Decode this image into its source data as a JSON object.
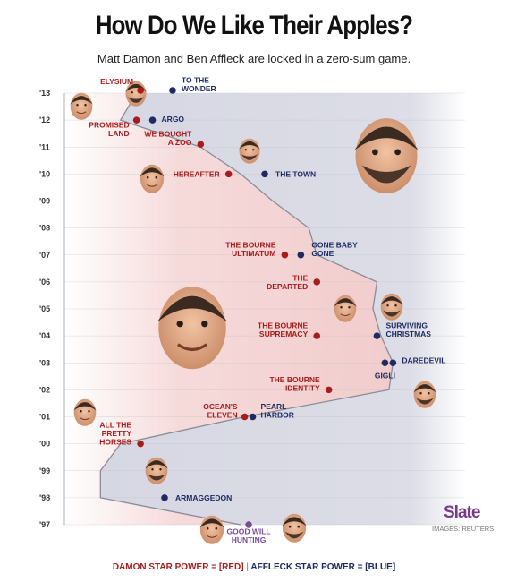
{
  "header": {
    "title": "How Do We Like Their Apples?",
    "subtitle": "Matt Damon and Ben Affleck are locked in a zero-sum game."
  },
  "legend": {
    "damon": "DAMON STAR POWER = [RED]",
    "separator": "|",
    "affleck": "AFFLECK STAR POWER = [BLUE]"
  },
  "branding": {
    "logo": "Slate",
    "credit": "IMAGES: REUTERS"
  },
  "colors": {
    "damon": "#a81c1c",
    "affleck": "#1e2b63",
    "shared": "#7a4a9a",
    "damon_area": "#f3d9d9",
    "affleck_area": "#d9dae4"
  },
  "icons": [
    "damon-face-icon",
    "affleck-face-icon"
  ],
  "chart_data": {
    "type": "line",
    "y_axis": {
      "label_format": "'YY",
      "ticks": [
        "'97",
        "'98",
        "'99",
        "'00",
        "'01",
        "'02",
        "'03",
        "'04",
        "'05",
        "'06",
        "'07",
        "'08",
        "'09",
        "'10",
        "'11",
        "'12",
        "'13"
      ],
      "ylim": [
        1997,
        2013
      ]
    },
    "x_axis": {
      "meaning": "relative star power (left = Damon, right = Affleck)",
      "xlim": [
        0,
        100
      ]
    },
    "divider": [
      {
        "year": 1997,
        "x": 44
      },
      {
        "year": 1998,
        "x": 9
      },
      {
        "year": 1999,
        "x": 9
      },
      {
        "year": 2000,
        "x": 14
      },
      {
        "year": 2001,
        "x": 45
      },
      {
        "year": 2002,
        "x": 81
      },
      {
        "year": 2003,
        "x": 82
      },
      {
        "year": 2004,
        "x": 79
      },
      {
        "year": 2005,
        "x": 77
      },
      {
        "year": 2006,
        "x": 78
      },
      {
        "year": 2007,
        "x": 63
      },
      {
        "year": 2008,
        "x": 61
      },
      {
        "year": 2009,
        "x": 52
      },
      {
        "year": 2010,
        "x": 44
      },
      {
        "year": 2011,
        "x": 34
      },
      {
        "year": 2012,
        "x": 14
      },
      {
        "year": 2013,
        "x": 18
      }
    ],
    "series": [
      {
        "name": "Damon",
        "color": "#a81c1c",
        "points": [
          {
            "year": 2013.1,
            "x": 19,
            "label": "ELYSIUM"
          },
          {
            "year": 2012.0,
            "x": 18,
            "label": "PROMISED LAND"
          },
          {
            "year": 2011.1,
            "x": 34,
            "label": "WE BOUGHT A ZOO"
          },
          {
            "year": 2010.0,
            "x": 41,
            "label": "HEREAFTER"
          },
          {
            "year": 2007.0,
            "x": 55,
            "label": "THE BOURNE ULTIMATUM"
          },
          {
            "year": 2006.0,
            "x": 63,
            "label": "THE DEPARTED"
          },
          {
            "year": 2004.0,
            "x": 63,
            "label": "THE BOURNE SUPREMACY"
          },
          {
            "year": 2002.0,
            "x": 66,
            "label": "THE BOURNE IDENTITY"
          },
          {
            "year": 2001.0,
            "x": 45,
            "label": "OCEAN'S ELEVEN"
          },
          {
            "year": 2000.0,
            "x": 19,
            "label": "ALL THE PRETTY HORSES"
          }
        ]
      },
      {
        "name": "Affleck",
        "color": "#1e2b63",
        "points": [
          {
            "year": 2013.1,
            "x": 27,
            "label": "TO THE WONDER"
          },
          {
            "year": 2012.0,
            "x": 22,
            "label": "ARGO"
          },
          {
            "year": 2010.0,
            "x": 50,
            "label": "THE TOWN"
          },
          {
            "year": 2007.0,
            "x": 59,
            "label": "GONE BABY GONE"
          },
          {
            "year": 2004.0,
            "x": 78,
            "label": "SURVIVING CHRISTMAS"
          },
          {
            "year": 2003.0,
            "x": 82,
            "label": "DAREDEVIL"
          },
          {
            "year": 2003.0,
            "x": 80,
            "label": "GIGLI"
          },
          {
            "year": 2001.0,
            "x": 47,
            "label": "PEARL HARBOR"
          },
          {
            "year": 1998.0,
            "x": 25,
            "label": "ARMAGGEDON"
          }
        ]
      },
      {
        "name": "Both",
        "color": "#7a4a9a",
        "points": [
          {
            "year": 1997.0,
            "x": 46,
            "label": "GOOD WILL HUNTING"
          }
        ]
      }
    ]
  }
}
